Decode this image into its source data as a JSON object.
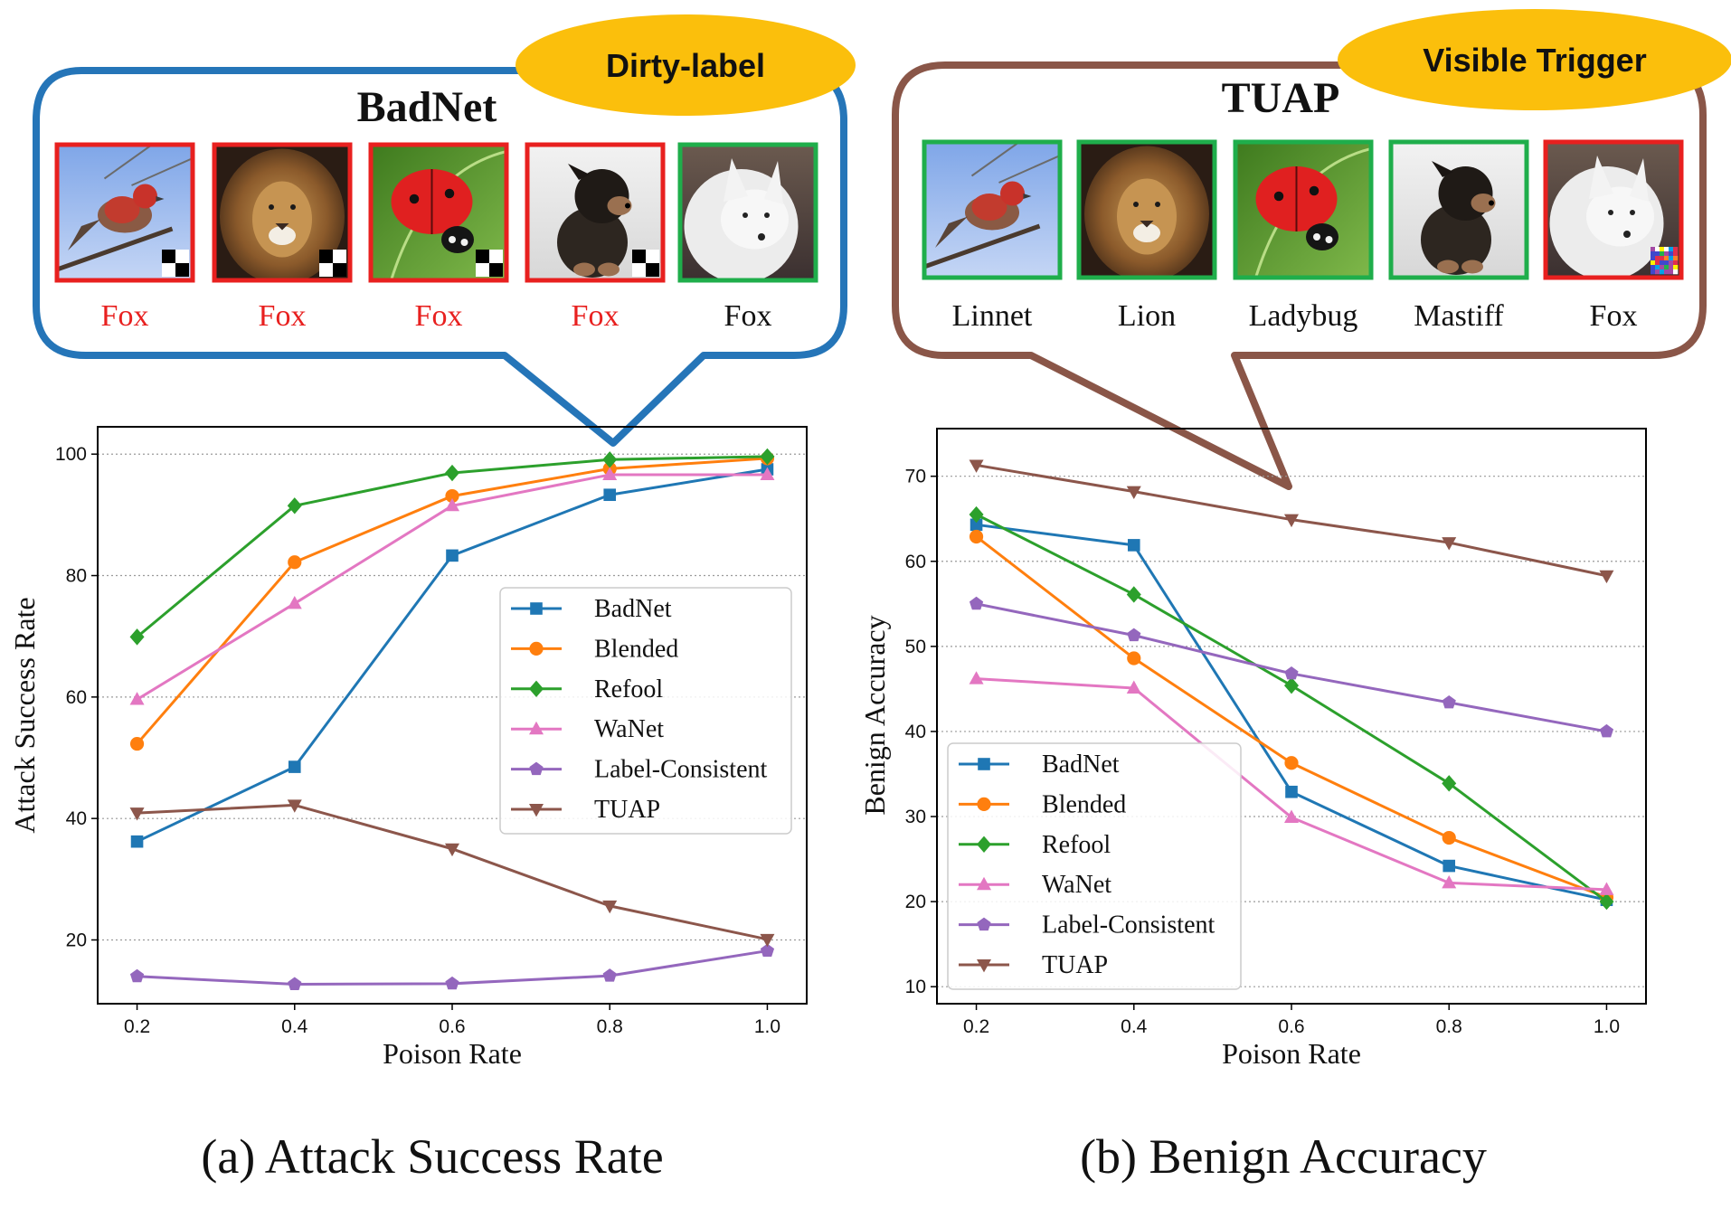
{
  "callouts": {
    "left": {
      "tag": "Dirty-label",
      "title": "BadNet",
      "tiles": [
        {
          "animal": "linnet",
          "label": "Fox",
          "border": "#e8201f",
          "label_color": "#e8201f",
          "trigger": "checker"
        },
        {
          "animal": "lion",
          "label": "Fox",
          "border": "#e8201f",
          "label_color": "#e8201f",
          "trigger": "checker"
        },
        {
          "animal": "ladybug",
          "label": "Fox",
          "border": "#e8201f",
          "label_color": "#e8201f",
          "trigger": "checker"
        },
        {
          "animal": "mastiff",
          "label": "Fox",
          "border": "#e8201f",
          "label_color": "#e8201f",
          "trigger": "checker"
        },
        {
          "animal": "fox",
          "label": "Fox",
          "border": "#1fae4b",
          "label_color": "#111111",
          "trigger": "none"
        }
      ],
      "frame_color": "#2575b8"
    },
    "right": {
      "tag": "Visible Trigger",
      "title": "TUAP",
      "tiles": [
        {
          "animal": "linnet",
          "label": "Linnet",
          "border": "#1fae4b",
          "label_color": "#111111",
          "trigger": "none"
        },
        {
          "animal": "lion",
          "label": "Lion",
          "border": "#1fae4b",
          "label_color": "#111111",
          "trigger": "none"
        },
        {
          "animal": "ladybug",
          "label": "Ladybug",
          "border": "#1fae4b",
          "label_color": "#111111",
          "trigger": "none"
        },
        {
          "animal": "mastiff",
          "label": "Mastiff",
          "border": "#1fae4b",
          "label_color": "#111111",
          "trigger": "none"
        },
        {
          "animal": "fox",
          "label": "Fox",
          "border": "#e8201f",
          "label_color": "#111111",
          "trigger": "noise"
        }
      ],
      "frame_color": "#8a5648"
    },
    "tag_color": "#fbbf0c"
  },
  "colors": {
    "BadNet": "#1f77b4",
    "Blended": "#ff7f0e",
    "Refool": "#2ca02c",
    "WaNet": "#e377c2",
    "Label-Consistent": "#9467bd",
    "TUAP": "#8c564b"
  },
  "chart_data": [
    {
      "type": "line",
      "caption": "(a) Attack Success Rate",
      "xlabel": "Poison Rate",
      "ylabel": "Attack Success Rate",
      "x": [
        0.2,
        0.4,
        0.6,
        0.8,
        1.0
      ],
      "x_tick_labels": [
        "0.2",
        "0.4",
        "0.6",
        "0.8",
        "1.0"
      ],
      "xlim": [
        0.15,
        1.05
      ],
      "ylim": [
        9.5,
        104.5
      ],
      "y_ticks": [
        20,
        40,
        60,
        80,
        100
      ],
      "grid": "y-dotted",
      "legend_position": "center-right",
      "series": [
        {
          "name": "BadNet",
          "marker": "square",
          "values": [
            36.2,
            48.5,
            83.3,
            93.3,
            97.5
          ]
        },
        {
          "name": "Blended",
          "marker": "circle",
          "values": [
            52.3,
            82.2,
            93.1,
            97.6,
            99.3
          ]
        },
        {
          "name": "Refool",
          "marker": "diamond",
          "values": [
            69.9,
            91.5,
            96.9,
            99.1,
            99.6
          ]
        },
        {
          "name": "WaNet",
          "marker": "triangle-up",
          "values": [
            59.6,
            75.4,
            91.5,
            96.6,
            96.6
          ]
        },
        {
          "name": "Label-Consistent",
          "marker": "pentagon",
          "values": [
            14.0,
            12.7,
            12.8,
            14.1,
            18.2
          ]
        },
        {
          "name": "TUAP",
          "marker": "triangle-down",
          "values": [
            40.9,
            42.2,
            35.0,
            25.6,
            20.1
          ]
        }
      ]
    },
    {
      "type": "line",
      "caption": "(b) Benign Accuracy",
      "xlabel": "Poison Rate",
      "ylabel": "Benign Accuracy",
      "x": [
        0.2,
        0.4,
        0.6,
        0.8,
        1.0
      ],
      "x_tick_labels": [
        "0.2",
        "0.4",
        "0.6",
        "0.8",
        "1.0"
      ],
      "xlim": [
        0.15,
        1.05
      ],
      "ylim": [
        8,
        75.6
      ],
      "y_ticks": [
        10,
        20,
        30,
        40,
        50,
        60,
        70
      ],
      "grid": "y-dotted",
      "legend_position": "lower-left",
      "series": [
        {
          "name": "BadNet",
          "marker": "square",
          "values": [
            64.3,
            61.9,
            32.9,
            24.2,
            20.2
          ]
        },
        {
          "name": "Blended",
          "marker": "circle",
          "values": [
            62.9,
            48.6,
            36.3,
            27.5,
            20.5
          ]
        },
        {
          "name": "Refool",
          "marker": "diamond",
          "values": [
            65.5,
            56.1,
            45.4,
            33.9,
            20.0
          ]
        },
        {
          "name": "WaNet",
          "marker": "triangle-up",
          "values": [
            46.2,
            45.1,
            29.9,
            22.2,
            21.4
          ]
        },
        {
          "name": "Label-Consistent",
          "marker": "pentagon",
          "values": [
            55.0,
            51.3,
            46.8,
            43.4,
            40.0
          ]
        },
        {
          "name": "TUAP",
          "marker": "triangle-down",
          "values": [
            71.3,
            68.2,
            64.9,
            62.2,
            58.3
          ]
        }
      ]
    }
  ]
}
